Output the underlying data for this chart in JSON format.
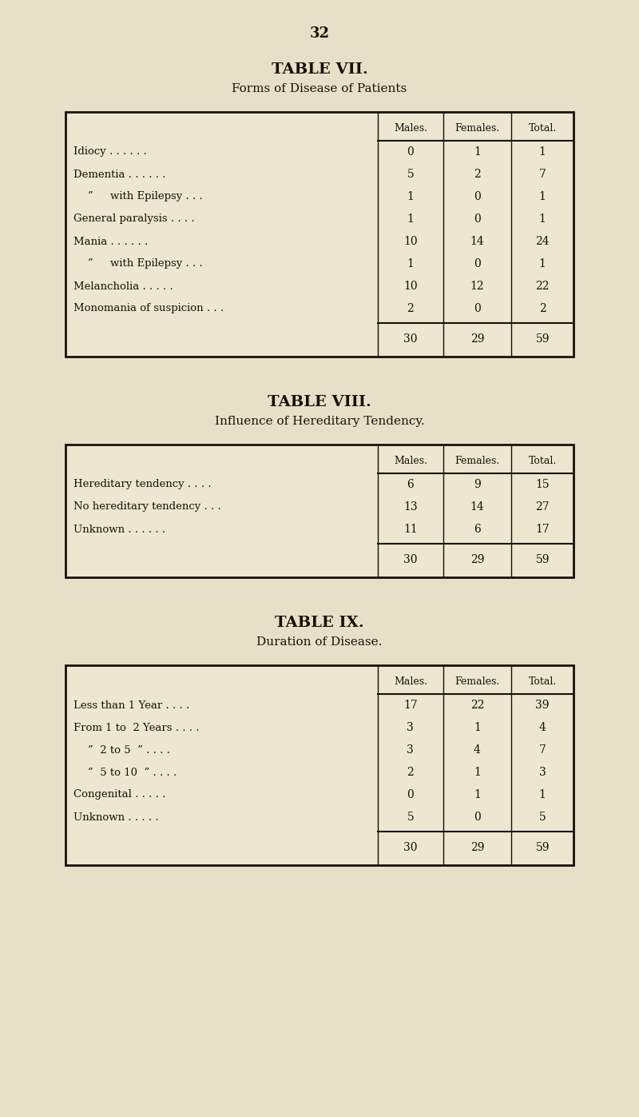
{
  "bg_color": "#e8dfc8",
  "text_color": "#1a1008",
  "page_number": "32",
  "table7": {
    "title": "TABLE VII.",
    "subtitle": "Forms of Disease of Patients",
    "headers": [
      "Males.",
      "Females.",
      "Total."
    ],
    "rows": [
      [
        "Idiocy . . . . . .",
        false,
        "0",
        "1",
        "1"
      ],
      [
        "Dementia . . . . . .",
        false,
        "5",
        "2",
        "7"
      ],
      [
        "”     with Epilepsy . . .",
        true,
        "1",
        "0",
        "1"
      ],
      [
        "General paralysis . . . .",
        false,
        "1",
        "0",
        "1"
      ],
      [
        "Mania . . . . . .",
        false,
        "10",
        "14",
        "24"
      ],
      [
        "”     with Epilepsy . . .",
        true,
        "1",
        "0",
        "1"
      ],
      [
        "Melancholia . . . . .",
        false,
        "10",
        "12",
        "22"
      ],
      [
        "Monomania of suspicion . . .",
        false,
        "2",
        "0",
        "2"
      ]
    ],
    "totals": [
      "30",
      "29",
      "59"
    ]
  },
  "table8": {
    "title": "TABLE VIII.",
    "subtitle": "Influence of Hereditary Tendency.",
    "headers": [
      "Males.",
      "Females.",
      "Total."
    ],
    "rows": [
      [
        "Hereditary tendency . . . .",
        false,
        "6",
        "9",
        "15"
      ],
      [
        "No hereditary tendency . . .",
        false,
        "13",
        "14",
        "27"
      ],
      [
        "Unknown . . . . . .",
        false,
        "11",
        "6",
        "17"
      ]
    ],
    "totals": [
      "30",
      "29",
      "59"
    ]
  },
  "table9": {
    "title": "TABLE IX.",
    "subtitle": "Duration of Disease.",
    "headers": [
      "Males.",
      "Females.",
      "Total."
    ],
    "rows": [
      [
        "Less than 1 Year . . . .",
        false,
        "17",
        "22",
        "39"
      ],
      [
        "From 1 to  2 Years . . . .",
        false,
        "3",
        "1",
        "4"
      ],
      [
        "”  2 to 5  ” . . . .",
        true,
        "3",
        "4",
        "7"
      ],
      [
        "”  5 to 10  ” . . . .",
        true,
        "2",
        "1",
        "3"
      ],
      [
        "Congenital . . . . .",
        false,
        "0",
        "1",
        "1"
      ],
      [
        "Unknown . . . . .",
        false,
        "5",
        "0",
        "5"
      ]
    ],
    "totals": [
      "30",
      "29",
      "59"
    ]
  }
}
